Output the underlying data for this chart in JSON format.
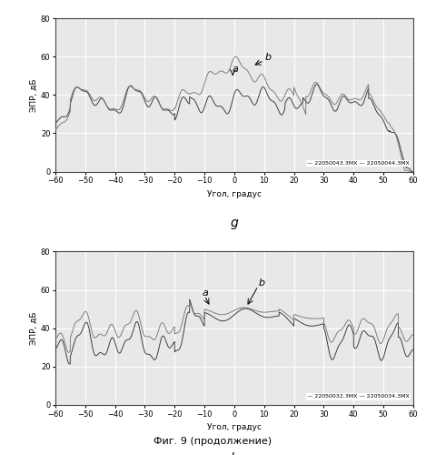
{
  "xlim": [
    -60,
    60
  ],
  "ylim": [
    0,
    80
  ],
  "xlabel": "Угол, градус",
  "ylabel": "ЭПР, дБ",
  "yticks": [
    0,
    20,
    40,
    60,
    80
  ],
  "xticks": [
    -60,
    -50,
    -40,
    -30,
    -20,
    -10,
    0,
    10,
    20,
    30,
    40,
    50,
    60
  ],
  "legend_g": "— 22050043.3МХ — 22050044.3МХ",
  "legend_h": "— 22050032.3МХ — 22050034.3МХ",
  "label_g": "g",
  "label_h": "h",
  "caption": "Фиг. 9 (продолжение)",
  "line_color1": "#333333",
  "line_color2": "#777777",
  "bg_color": "#e8e8e8"
}
